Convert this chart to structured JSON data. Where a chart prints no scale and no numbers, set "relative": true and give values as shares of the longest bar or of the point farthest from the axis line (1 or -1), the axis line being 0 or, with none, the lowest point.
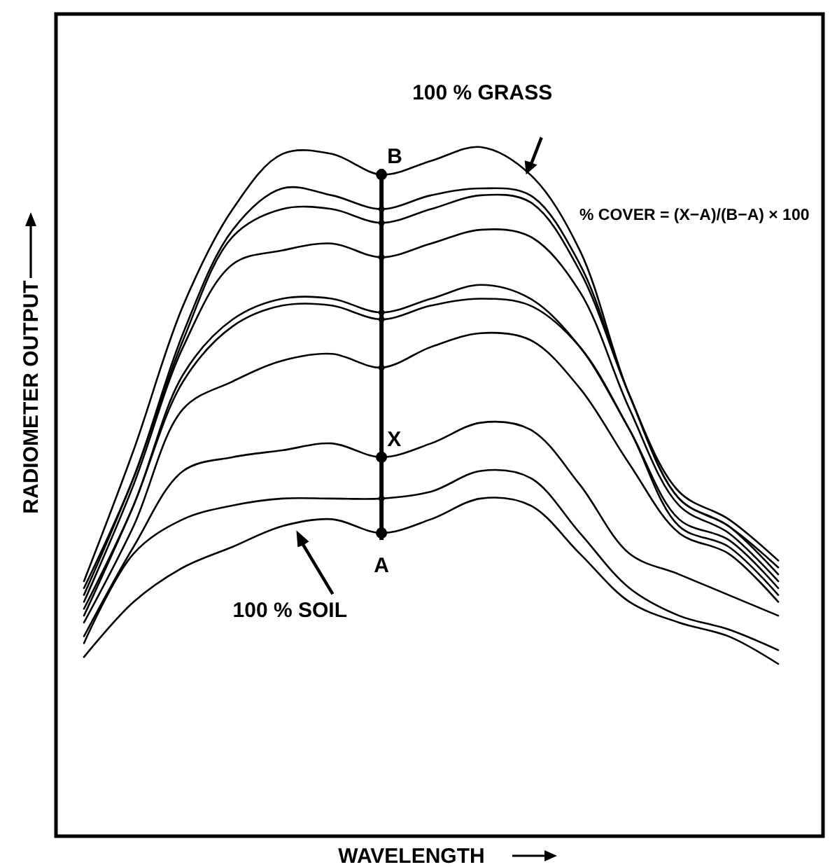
{
  "chart_data": {
    "type": "line",
    "relative": true,
    "xlabel": "WAVELENGTH",
    "ylabel": "RADIOMETER OUTPUT",
    "categories": [
      null,
      null,
      null,
      null,
      null,
      null,
      null,
      null,
      null,
      null,
      null,
      null,
      null,
      null,
      null
    ],
    "series": [
      {
        "color": "#000000",
        "values": [
          0.37,
          0.56,
          0.77,
          0.91,
          0.99,
          0.99,
          0.96,
          0.98,
          1.0,
          0.96,
          0.85,
          0.64,
          0.5,
          0.46,
          0.4
        ]
      },
      {
        "color": "#000000",
        "values": [
          0.36,
          0.52,
          0.73,
          0.88,
          0.94,
          0.93,
          0.91,
          0.93,
          0.94,
          0.93,
          0.83,
          0.64,
          0.49,
          0.45,
          0.39
        ]
      },
      {
        "color": "#000000",
        "values": [
          0.35,
          0.52,
          0.72,
          0.87,
          0.91,
          0.91,
          0.89,
          0.91,
          0.93,
          0.92,
          0.82,
          0.64,
          0.49,
          0.45,
          0.38
        ]
      },
      {
        "color": "#000000",
        "values": [
          0.34,
          0.51,
          0.71,
          0.83,
          0.85,
          0.86,
          0.84,
          0.86,
          0.88,
          0.87,
          0.79,
          0.62,
          0.48,
          0.44,
          0.37
        ]
      },
      {
        "color": "#000000",
        "values": [
          0.33,
          0.48,
          0.67,
          0.75,
          0.78,
          0.78,
          0.76,
          0.78,
          0.8,
          0.78,
          0.71,
          0.59,
          0.46,
          0.43,
          0.36
        ]
      },
      {
        "color": "#000000",
        "values": [
          0.32,
          0.48,
          0.66,
          0.74,
          0.77,
          0.77,
          0.75,
          0.77,
          0.78,
          0.77,
          0.71,
          0.59,
          0.45,
          0.42,
          0.35
        ]
      },
      {
        "color": "#000000",
        "values": [
          0.31,
          0.45,
          0.62,
          0.66,
          0.69,
          0.7,
          0.68,
          0.71,
          0.73,
          0.72,
          0.65,
          0.54,
          0.44,
          0.41,
          0.34
        ]
      },
      {
        "color": "#000000",
        "values": [
          0.29,
          0.42,
          0.53,
          0.55,
          0.56,
          0.57,
          0.55,
          0.57,
          0.6,
          0.59,
          0.51,
          0.41,
          0.38,
          0.35,
          0.32
        ]
      },
      {
        "color": "#000000",
        "values": [
          0.28,
          0.41,
          0.46,
          0.48,
          0.49,
          0.49,
          0.49,
          0.5,
          0.53,
          0.52,
          0.44,
          0.36,
          0.32,
          0.3,
          0.27
        ]
      },
      {
        "color": "#000000",
        "values": [
          0.26,
          0.34,
          0.39,
          0.42,
          0.45,
          0.46,
          0.44,
          0.46,
          0.49,
          0.48,
          0.41,
          0.34,
          0.31,
          0.29,
          0.25
        ]
      }
    ],
    "annotations": [
      "100 % GRASS",
      "% COVER = (X−A)/(B−A) × 100",
      "100 % SOIL",
      "B",
      "X",
      "A"
    ]
  }
}
